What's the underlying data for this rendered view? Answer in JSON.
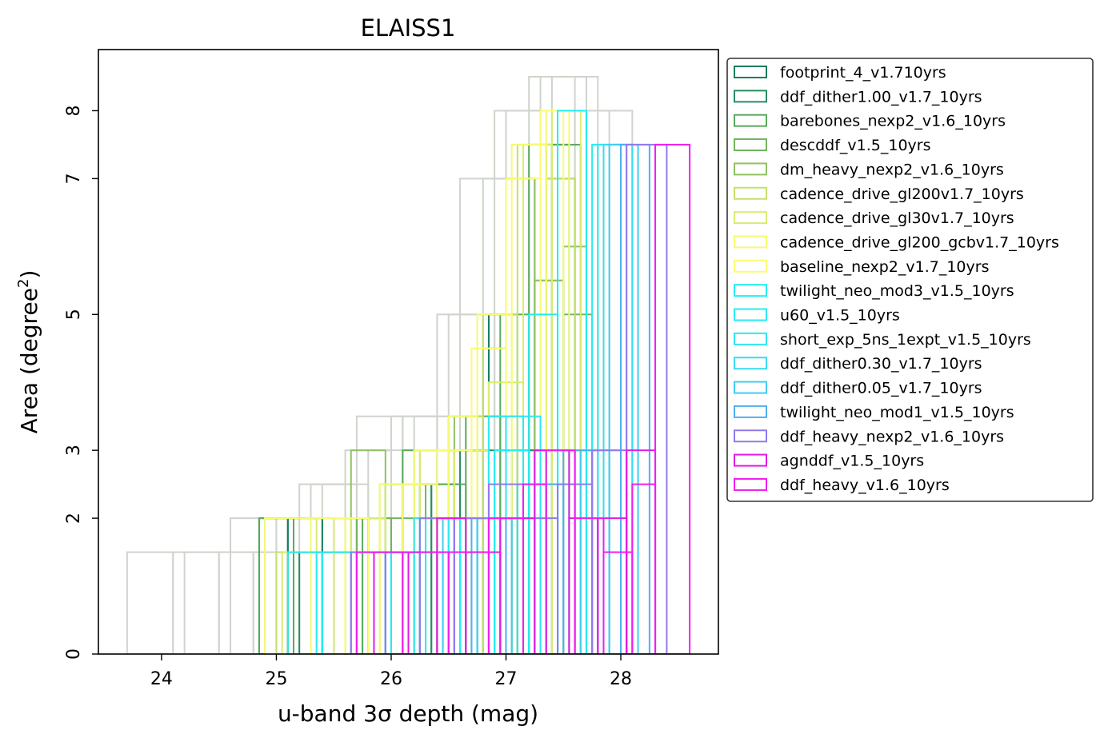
{
  "chart_data": {
    "type": "bar",
    "subtype": "step-histogram",
    "title": "ELAISS1",
    "xlabel": "u-band 3σ depth (mag)",
    "ylabel_text": "Area (degree",
    "ylabel_sup": "2",
    "ylabel_close": ")",
    "xlim": [
      23.45,
      28.85
    ],
    "ylim": [
      0,
      8.9
    ],
    "xticks": [
      24,
      25,
      26,
      27,
      28
    ],
    "yticks": [
      0,
      2,
      3,
      5,
      7,
      8
    ],
    "xtick_labels": [
      "24",
      "25",
      "26",
      "27",
      "28"
    ],
    "ytick_labels": [
      "0",
      "2",
      "3",
      "5",
      "7",
      "8"
    ],
    "grid": false,
    "legend_position": "outside-right",
    "background_series_color": "#cfd4cc",
    "background_series": [
      {
        "edges": [
          23.7,
          24.1,
          24.5,
          24.9,
          25.3,
          25.7,
          26.1,
          26.5,
          26.9,
          27.3,
          27.7,
          28.1
        ],
        "counts": [
          1.5,
          1.5,
          1.5,
          2.0,
          2.5,
          3.5,
          3.5,
          5.0,
          8.0,
          8.5,
          8.0
        ]
      },
      {
        "edges": [
          24.6,
          25.0,
          25.4,
          25.8,
          26.2,
          26.6,
          27.0,
          27.4,
          27.8,
          28.0
        ],
        "counts": [
          2.0,
          2.0,
          2.5,
          3.0,
          3.5,
          7.0,
          8.0,
          8.5,
          7.5
        ]
      },
      {
        "edges": [
          24.2,
          24.8,
          25.2,
          25.6,
          26.0,
          26.4,
          26.8,
          27.2,
          27.6,
          27.9
        ],
        "counts": [
          1.5,
          1.5,
          2.5,
          3.0,
          3.5,
          5.0,
          7.0,
          8.5,
          8.0
        ]
      }
    ],
    "series": [
      {
        "name": "footprint_4_v1.710yrs",
        "color": "#117e5d",
        "edges": [
          24.85,
          25.1,
          25.4,
          25.7,
          26.0,
          26.25,
          26.55,
          26.85,
          27.1,
          27.35,
          27.55
        ],
        "counts": [
          2.0,
          2.0,
          1.5,
          2.0,
          1.5,
          2.5,
          3.0,
          5.0,
          3.0,
          7.5
        ]
      },
      {
        "name": "ddf_dither1.00_v1.7_10yrs",
        "color": "#268e62",
        "edges": [
          25.2,
          25.5,
          25.8,
          26.1,
          26.35,
          26.6,
          26.8,
          27.05,
          27.35,
          27.6
        ],
        "counts": [
          1.5,
          2.0,
          1.5,
          2.5,
          2.5,
          3.0,
          3.0,
          3.0,
          7.0
        ]
      },
      {
        "name": "barebones_nexp2_v1.6_10yrs",
        "color": "#5aaa5e",
        "edges": [
          24.85,
          25.15,
          25.5,
          25.75,
          26.1,
          26.4,
          26.65,
          26.95,
          27.2,
          27.4,
          27.65
        ],
        "counts": [
          2.0,
          1.5,
          2.0,
          1.5,
          3.0,
          2.5,
          3.5,
          5.0,
          7.5,
          7.5
        ]
      },
      {
        "name": "descddf_v1.5_10yrs",
        "color": "#72b45e",
        "edges": [
          25.1,
          25.4,
          25.7,
          26.0,
          26.3,
          26.5,
          26.75,
          27.0,
          27.25,
          27.5,
          27.75
        ],
        "counts": [
          1.5,
          1.5,
          2.0,
          2.0,
          2.5,
          3.0,
          3.5,
          7.0,
          5.5,
          5.0
        ]
      },
      {
        "name": "dm_heavy_nexp2_v1.6_10yrs",
        "color": "#8fc262",
        "edges": [
          25.3,
          25.65,
          25.95,
          26.25,
          26.55,
          26.8,
          27.0,
          27.25,
          27.5,
          27.7
        ],
        "counts": [
          1.5,
          3.0,
          2.5,
          3.0,
          3.5,
          4.5,
          7.0,
          5.5,
          6.0
        ]
      },
      {
        "name": "cadence_drive_gl200v1.7_10yrs",
        "color": "#c4e06d",
        "edges": [
          25.0,
          25.3,
          25.6,
          25.9,
          26.2,
          26.5,
          26.8,
          27.1,
          27.35,
          27.6
        ],
        "counts": [
          1.5,
          2.0,
          2.0,
          2.5,
          3.0,
          3.5,
          5.0,
          7.5,
          7.0
        ]
      },
      {
        "name": "cadence_drive_gl30v1.7_10yrs",
        "color": "#d9ec70",
        "edges": [
          25.05,
          25.35,
          25.65,
          25.95,
          26.25,
          26.55,
          26.85,
          27.15,
          27.4,
          27.65
        ],
        "counts": [
          1.5,
          2.0,
          2.0,
          2.5,
          3.0,
          3.0,
          4.0,
          7.5,
          8.0
        ]
      },
      {
        "name": "cadence_drive_gl200_gcbv1.7_10yrs",
        "color": "#f4fb72",
        "edges": [
          24.9,
          25.3,
          25.6,
          25.9,
          26.2,
          26.5,
          26.75,
          27.05,
          27.35,
          27.55
        ],
        "counts": [
          2.0,
          2.0,
          1.5,
          2.5,
          3.0,
          3.5,
          5.0,
          7.5,
          8.0
        ]
      },
      {
        "name": "baseline_nexp2_v1.7_10yrs",
        "color": "#fbfb76",
        "edges": [
          25.5,
          25.8,
          26.1,
          26.4,
          26.7,
          27.0,
          27.3,
          27.5
        ],
        "counts": [
          2.0,
          1.5,
          2.5,
          3.0,
          4.5,
          7.0,
          8.0
        ]
      },
      {
        "name": "twilight_neo_mod3_v1.5_10yrs",
        "color": "#22eef2",
        "edges": [
          25.1,
          25.4,
          25.7,
          26.0,
          26.3,
          26.6,
          26.9,
          27.2,
          27.45,
          27.7
        ],
        "counts": [
          1.5,
          1.5,
          1.5,
          1.5,
          2.0,
          2.0,
          3.0,
          5.0,
          8.0
        ]
      },
      {
        "name": "u60_v1.5_10yrs",
        "color": "#2aebf0",
        "edges": [
          25.35,
          25.65,
          25.95,
          26.25,
          26.55,
          26.85,
          27.15,
          27.45,
          27.75,
          28.05
        ],
        "counts": [
          1.5,
          1.5,
          1.5,
          2.0,
          2.0,
          3.5,
          2.0,
          3.0,
          7.5
        ]
      },
      {
        "name": "short_exp_5ns_1expt_v1.5_10yrs",
        "color": "#30e6f2",
        "edges": [
          25.7,
          26.0,
          26.2,
          26.5,
          26.75,
          27.0,
          27.3,
          27.55,
          27.8,
          28.1
        ],
        "counts": [
          1.5,
          1.5,
          2.0,
          2.0,
          2.0,
          3.5,
          3.0,
          3.0,
          7.5
        ]
      },
      {
        "name": "ddf_dither0.30_v1.7_10yrs",
        "color": "#38dcef",
        "edges": [
          25.95,
          26.25,
          26.55,
          26.85,
          27.1,
          27.35,
          27.6,
          27.85,
          28.1
        ],
        "counts": [
          1.5,
          2.0,
          2.0,
          2.0,
          2.5,
          2.5,
          3.0,
          7.5
        ]
      },
      {
        "name": "ddf_dither0.05_v1.7_10yrs",
        "color": "#40cdf0",
        "edges": [
          26.15,
          26.45,
          26.75,
          27.05,
          27.35,
          27.65,
          27.9,
          28.15
        ],
        "counts": [
          1.5,
          2.0,
          2.0,
          2.0,
          3.0,
          3.0,
          7.5
        ]
      },
      {
        "name": "twilight_neo_mod1_v1.5_10yrs",
        "color": "#4eb0ef",
        "edges": [
          26.4,
          26.7,
          27.0,
          27.25,
          27.5,
          27.75,
          28.0,
          28.25
        ],
        "counts": [
          1.5,
          2.0,
          2.0,
          2.5,
          3.0,
          3.0,
          7.5
        ]
      },
      {
        "name": "ddf_heavy_nexp2_v1.6_10yrs",
        "color": "#917aec",
        "edges": [
          25.65,
          25.95,
          26.25,
          26.55,
          26.85,
          27.15,
          27.45,
          27.75,
          28.05,
          28.4
        ],
        "counts": [
          1.5,
          1.5,
          2.0,
          2.0,
          2.5,
          2.0,
          2.5,
          3.0,
          7.5
        ]
      },
      {
        "name": "agnddf_v1.5_10yrs",
        "color": "#e21ae6",
        "edges": [
          25.85,
          26.15,
          26.4,
          26.65,
          26.95,
          27.25,
          27.55,
          27.8,
          28.05,
          28.3
        ],
        "counts": [
          1.5,
          1.5,
          2.0,
          1.5,
          2.0,
          3.0,
          2.0,
          2.0,
          3.0
        ]
      },
      {
        "name": "ddf_heavy_v1.6_10yrs",
        "color": "#f01ef0",
        "edges": [
          25.7,
          26.1,
          26.5,
          26.85,
          27.15,
          27.35,
          27.6,
          27.85,
          28.1,
          28.3,
          28.6
        ],
        "counts": [
          1.5,
          1.5,
          1.5,
          2.0,
          2.5,
          3.0,
          2.0,
          1.5,
          2.5,
          7.5
        ]
      }
    ]
  }
}
